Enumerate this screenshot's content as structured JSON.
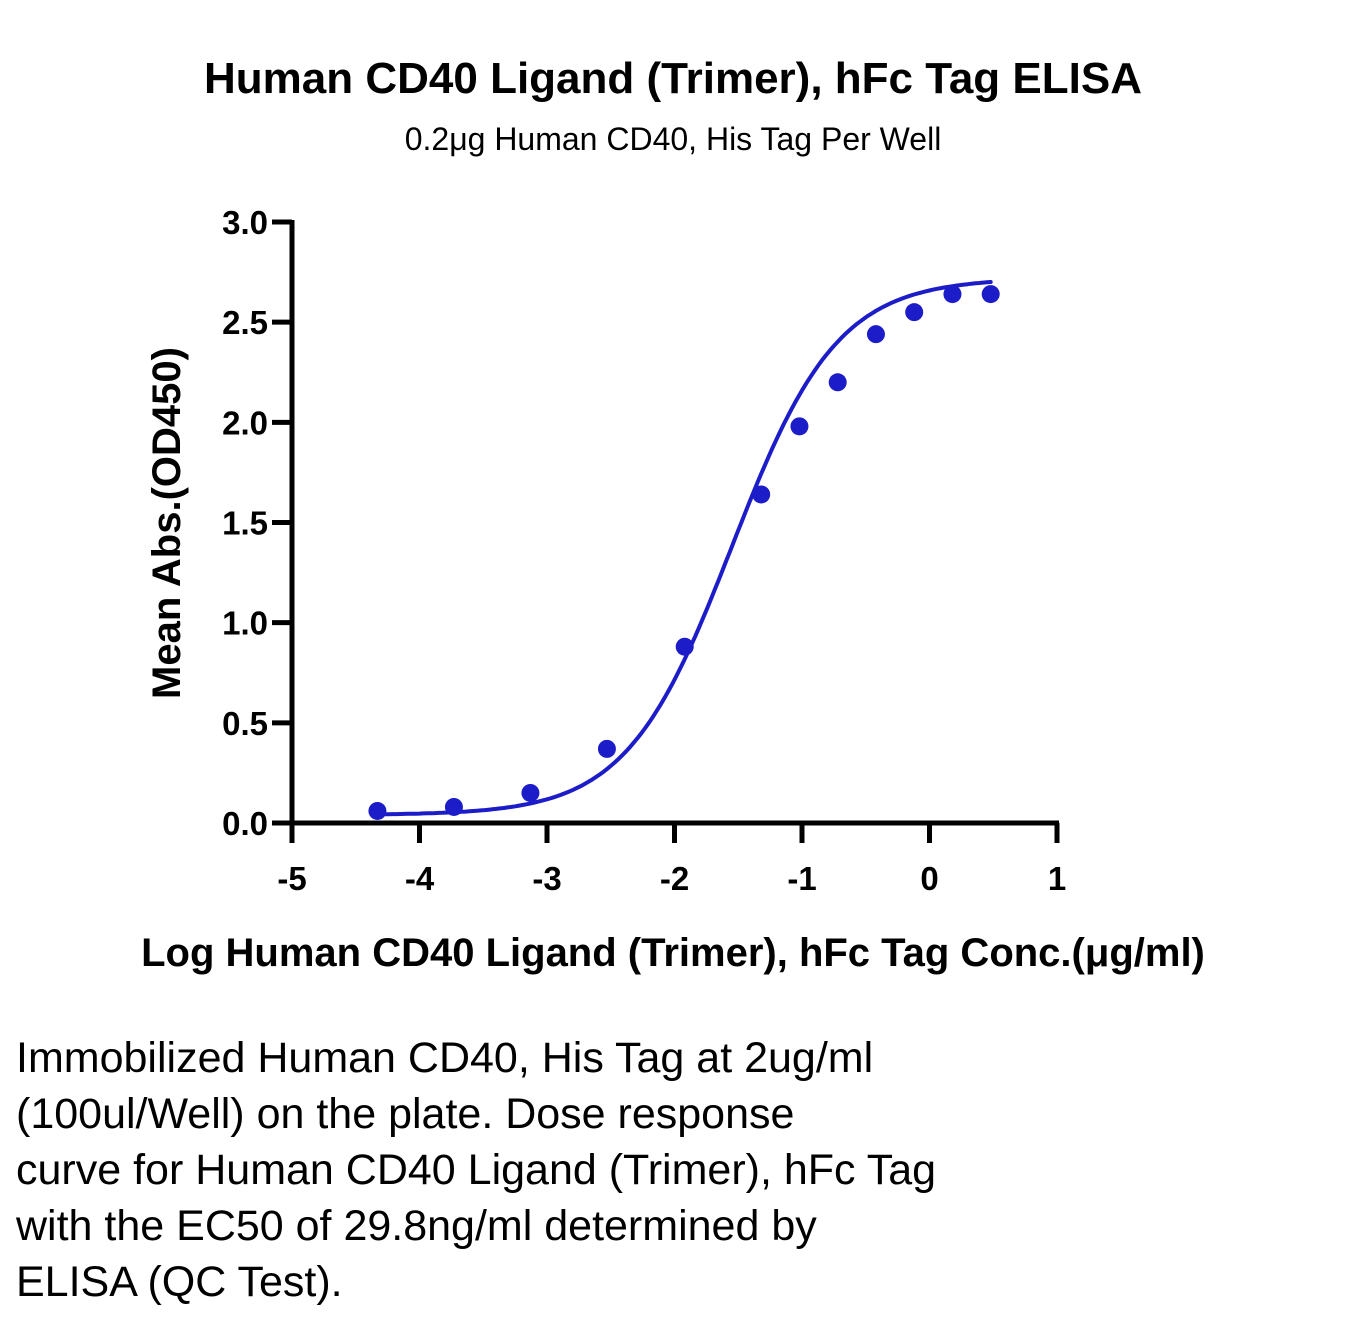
{
  "chart_data": {
    "type": "scatter",
    "title": "Human CD40 Ligand (Trimer), hFc Tag ELISA",
    "subtitle": "0.2μg Human CD40, His Tag Per Well",
    "xlabel": "Log Human CD40 Ligand (Trimer), hFc Tag Conc.(μg/ml)",
    "ylabel": "Mean Abs.(OD450)",
    "xlim": [
      -5,
      1
    ],
    "ylim": [
      0,
      3
    ],
    "x_ticks": [
      -5,
      -4,
      -3,
      -2,
      -1,
      0,
      1
    ],
    "x_tick_labels": [
      "-5",
      "-4",
      "-3",
      "-2",
      "-1",
      "0",
      "1"
    ],
    "y_ticks": [
      0,
      0.5,
      1,
      1.5,
      2,
      2.5,
      3
    ],
    "y_tick_labels": [
      "0.0",
      "0.5",
      "1.0",
      "1.5",
      "2.0",
      "2.5",
      "3.0"
    ],
    "grid": false,
    "legend": "none",
    "color": "#1c1cc8",
    "fit": "four-parameter logistic",
    "series": [
      {
        "x": [
          -4.33,
          -3.73,
          -3.13,
          -2.53,
          -1.92,
          -1.32,
          -1.02,
          -0.72,
          -0.42,
          -0.12,
          0.18,
          0.48
        ],
        "y": [
          0.06,
          0.08,
          0.15,
          0.37,
          0.88,
          1.64,
          1.98,
          2.2,
          2.44,
          2.55,
          2.64,
          2.64
        ]
      }
    ]
  },
  "caption": {
    "lines": [
      "Immobilized Human CD40, His Tag at 2ug/ml",
      "(100ul/Well) on the plate. Dose response",
      "curve for Human CD40 Ligand (Trimer), hFc Tag",
      "with the EC50 of 29.8ng/ml determined by",
      "ELISA (QC Test)."
    ]
  }
}
